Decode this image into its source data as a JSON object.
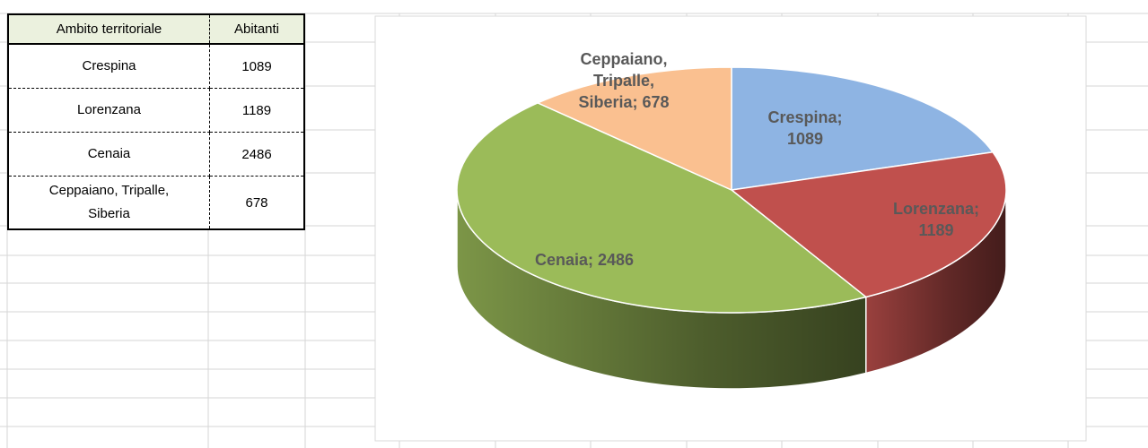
{
  "table": {
    "header": [
      "Ambito territoriale",
      "Abitanti"
    ],
    "rows": [
      [
        "Crespina",
        1089
      ],
      [
        "Lorenzana",
        1189
      ],
      [
        "Cenaia",
        2486
      ],
      [
        "Ceppaiano, Tripalle, Siberia",
        678
      ]
    ]
  },
  "chart_data": {
    "type": "pie",
    "categories": [
      "Crespina",
      "Lorenzana",
      "Cenaia",
      "Ceppaiano, Tripalle, Siberia"
    ],
    "values": [
      1089,
      1189,
      2486,
      678
    ],
    "value_labels": [
      "Crespina; 1089",
      "Lorenzana; 1189",
      "Cenaia; 2486",
      "Ceppaiano, Tripalle, Siberia; 678"
    ],
    "colors": [
      "#8eb4e3",
      "#c0504d",
      "#9bbb59",
      "#fac090"
    ]
  }
}
